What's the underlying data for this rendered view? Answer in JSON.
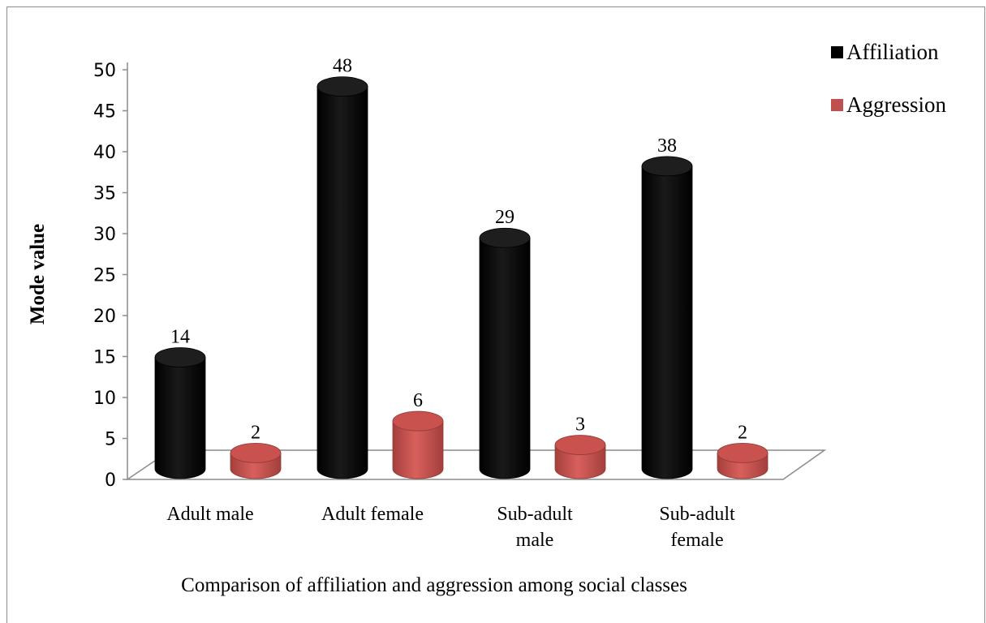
{
  "chart_data": {
    "type": "bar",
    "style": "3d-cylinder",
    "categories": [
      [
        "Adult male"
      ],
      [
        "Adult female"
      ],
      [
        "Sub-adult",
        "male"
      ],
      [
        "Sub-adult",
        "female"
      ]
    ],
    "series": [
      {
        "name": "Affiliation",
        "values": [
          14,
          48,
          29,
          38
        ],
        "color": "#000000"
      },
      {
        "name": "Aggression",
        "values": [
          2,
          6,
          3,
          2
        ],
        "color": "#c0504d"
      }
    ],
    "title": "",
    "xlabel": "Comparison of affiliation and aggression among social classes",
    "ylabel": "Mode value",
    "ylim": [
      0,
      50
    ],
    "yticks": [
      0,
      5,
      10,
      15,
      20,
      25,
      30,
      35,
      40,
      45,
      50
    ],
    "grid": false,
    "legend": "top-right",
    "data_labels": true
  }
}
